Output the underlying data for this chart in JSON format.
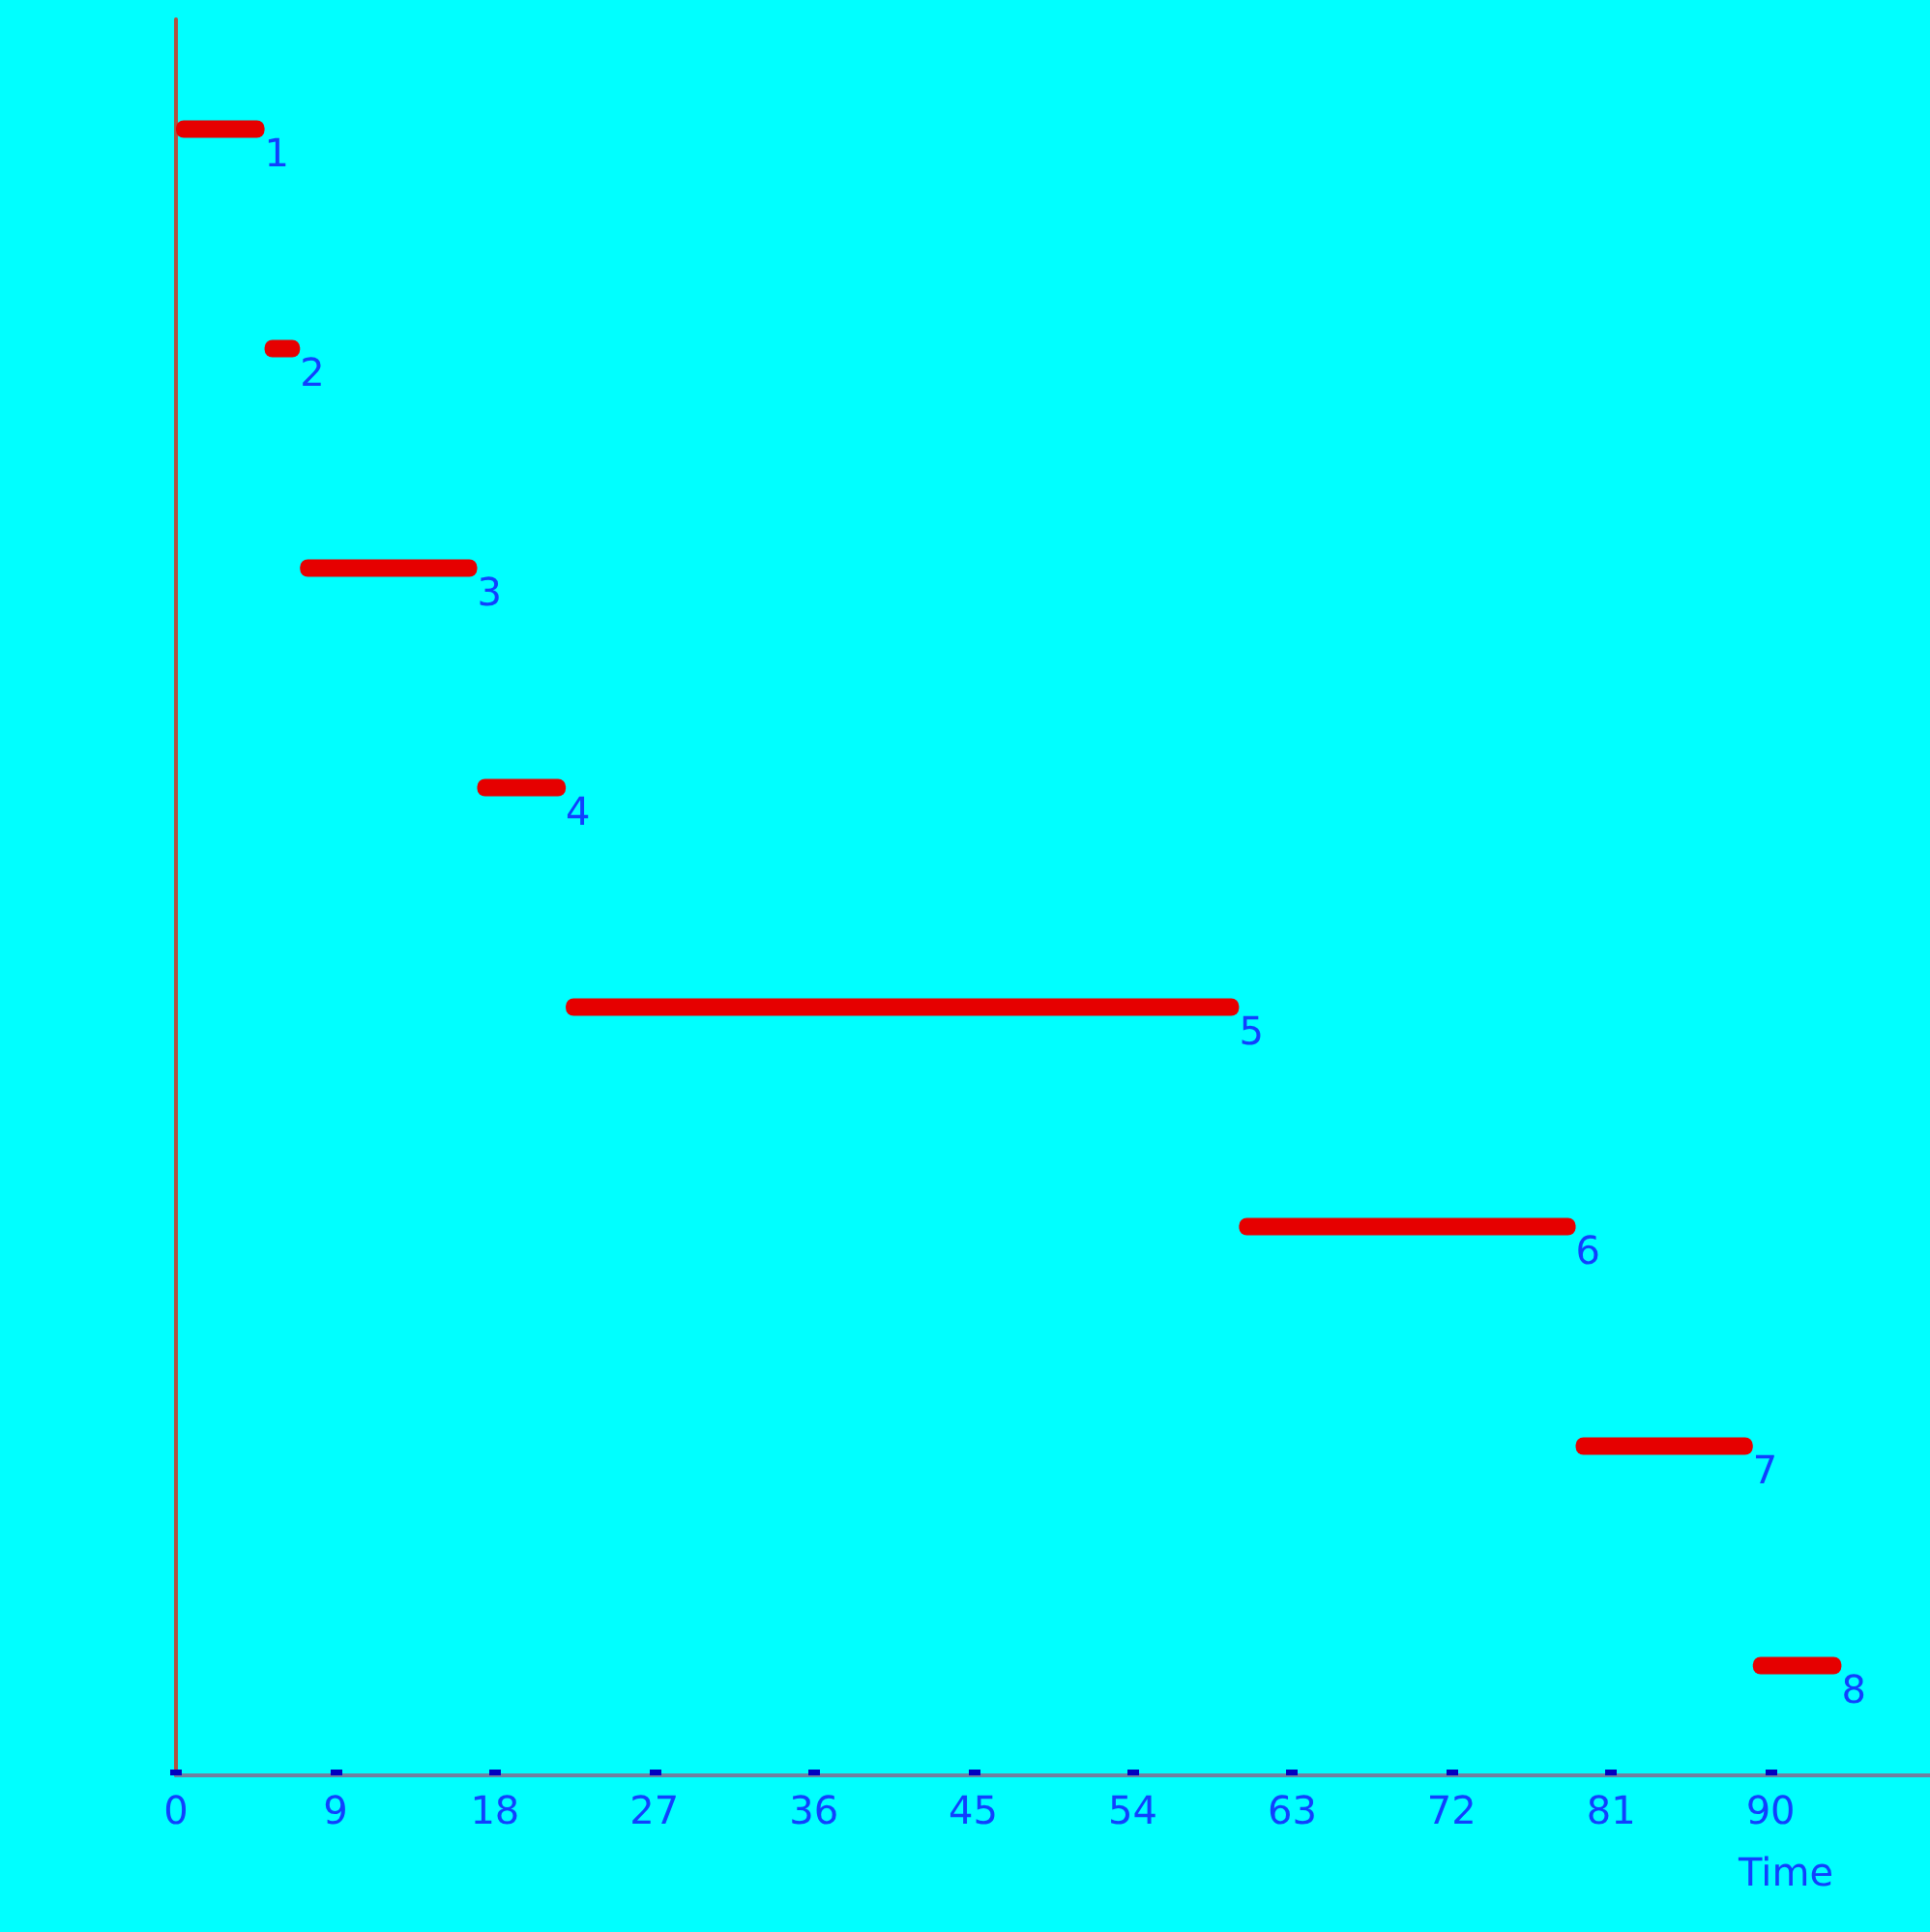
{
  "chart_data": {
    "type": "bar",
    "orientation": "horizontal",
    "xlabel": "Time",
    "categories": [
      "1",
      "2",
      "3",
      "4",
      "5",
      "6",
      "7",
      "8"
    ],
    "base": [
      0,
      5,
      7,
      17,
      22,
      60,
      79,
      89
    ],
    "values": [
      5,
      2,
      10,
      5,
      38,
      19,
      10,
      5
    ],
    "color": "#e60000",
    "xlim": [
      0,
      99
    ],
    "xticks": [
      0,
      9,
      18,
      27,
      36,
      45,
      54,
      63,
      72,
      81,
      90
    ],
    "grid": false,
    "tick_labels": "x"
  }
}
